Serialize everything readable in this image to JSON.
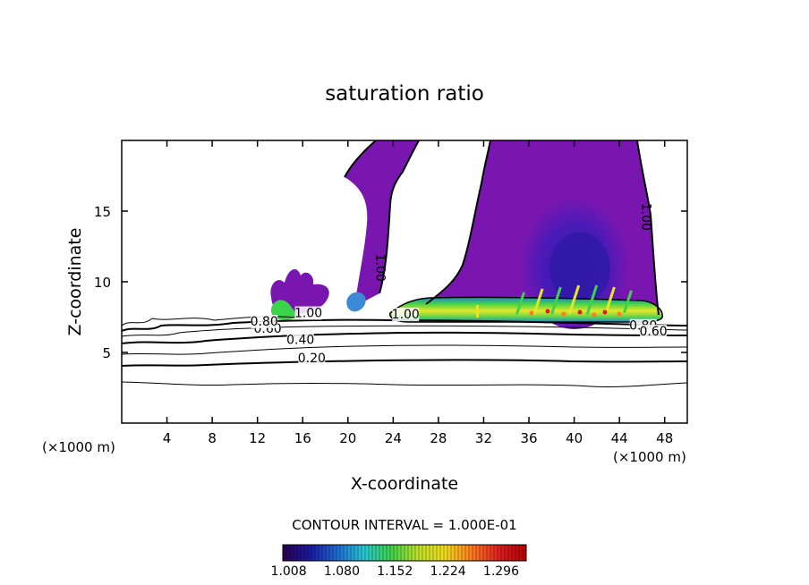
{
  "chart_data": {
    "type": "contour",
    "title": "saturation ratio",
    "xlabel": "X-coordinate",
    "ylabel": "Z-coordinate",
    "x_unit_label": "(×1000 m)",
    "y_unit_label": "(×1000 m)",
    "xlim": [
      0,
      50
    ],
    "ylim": [
      0,
      20
    ],
    "x_ticks": [
      4,
      8,
      12,
      16,
      20,
      24,
      28,
      32,
      36,
      40,
      44,
      48
    ],
    "y_ticks": [
      5,
      10,
      15
    ],
    "contour_interval_text": "CONTOUR INTERVAL = 1.000E-01",
    "contour_labels": [
      {
        "text": "0.20",
        "x": 16.8,
        "z": 4.3
      },
      {
        "text": "0.40",
        "x": 15.8,
        "z": 5.6
      },
      {
        "text": "0.60",
        "x": 12.9,
        "z": 6.4
      },
      {
        "text": "0.80",
        "x": 12.6,
        "z": 6.9
      },
      {
        "text": "1.00",
        "x": 16.5,
        "z": 7.5
      },
      {
        "text": "1.00",
        "x": 25.1,
        "z": 7.4
      },
      {
        "text": "1.00",
        "x": 22.5,
        "z": 11.0
      },
      {
        "text": "1.00",
        "x": 46.0,
        "z": 14.6
      },
      {
        "text": "0.80",
        "x": 46.1,
        "z": 6.6
      },
      {
        "text": "0.60",
        "x": 47.0,
        "z": 6.2
      }
    ],
    "colorbar": {
      "ticks": [
        1.008,
        1.08,
        1.152,
        1.224,
        1.296
      ],
      "tick_labels": [
        "1.008",
        "1.080",
        "1.152",
        "1.224",
        "1.296"
      ],
      "range": [
        1.0,
        1.33
      ],
      "colors": [
        "#2a0050",
        "#1a1aa0",
        "#1e6ad2",
        "#28c6d2",
        "#3cd24a",
        "#bee128",
        "#f0dc1e",
        "#ff7a1e",
        "#dc1e1e",
        "#b40000"
      ]
    },
    "supersaturated_fill_color": "#7a16b0"
  }
}
